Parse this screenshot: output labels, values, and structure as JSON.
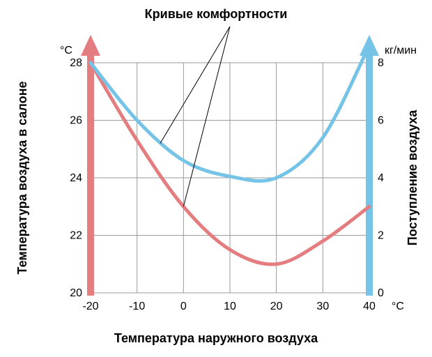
{
  "chart": {
    "type": "line",
    "title": "Кривые комфортности",
    "x_axis": {
      "label": "Температура наружного воздуха",
      "unit": "°C",
      "min": -20,
      "max": 40,
      "tick_step": 10,
      "ticks": [
        -20,
        -10,
        0,
        10,
        20,
        30,
        40
      ]
    },
    "y_left": {
      "label": "Температура воздуха в салоне",
      "unit": "°C",
      "min": 20,
      "max": 28,
      "tick_step": 2,
      "ticks": [
        20,
        22,
        24,
        26,
        28
      ],
      "axis_color": "#e47d80",
      "arrow_color": "#e47d80"
    },
    "y_right": {
      "label": "Поступление воздуха",
      "unit": "кг/мин",
      "min": 0,
      "max": 8,
      "tick_step": 2,
      "ticks": [
        0,
        2,
        4,
        6,
        8
      ],
      "axis_color": "#75c3e7",
      "arrow_color": "#75c3e7"
    },
    "grid": {
      "color": "#9a9a9a",
      "line_width": 1
    },
    "background_color": "#ffffff",
    "series": [
      {
        "name": "temperature_comfort",
        "axis": "left",
        "color": "#e47d80",
        "line_width": 5,
        "points": [
          {
            "x": -20,
            "y": 28.0
          },
          {
            "x": -10,
            "y": 25.3
          },
          {
            "x": 0,
            "y": 23.0
          },
          {
            "x": 10,
            "y": 21.5
          },
          {
            "x": 20,
            "y": 21.0
          },
          {
            "x": 30,
            "y": 21.8
          },
          {
            "x": 40,
            "y": 23.0
          }
        ]
      },
      {
        "name": "airflow_comfort",
        "axis": "right",
        "color": "#75c3e7",
        "line_width": 5,
        "points": [
          {
            "x": -20,
            "y": 8.0
          },
          {
            "x": -10,
            "y": 6.0
          },
          {
            "x": 0,
            "y": 4.6
          },
          {
            "x": 10,
            "y": 4.05
          },
          {
            "x": 20,
            "y": 4.0
          },
          {
            "x": 30,
            "y": 5.4
          },
          {
            "x": 40,
            "y": 8.6
          }
        ]
      }
    ],
    "annotation_lines": {
      "from_label_to_red": {
        "color": "#000000",
        "width": 1
      },
      "from_label_to_blue": {
        "color": "#000000",
        "width": 1
      }
    },
    "fonts": {
      "title_size_pt": 14,
      "axis_label_size_pt": 14,
      "tick_size_pt": 12,
      "unit_size_pt": 12,
      "family": "Arial"
    }
  }
}
